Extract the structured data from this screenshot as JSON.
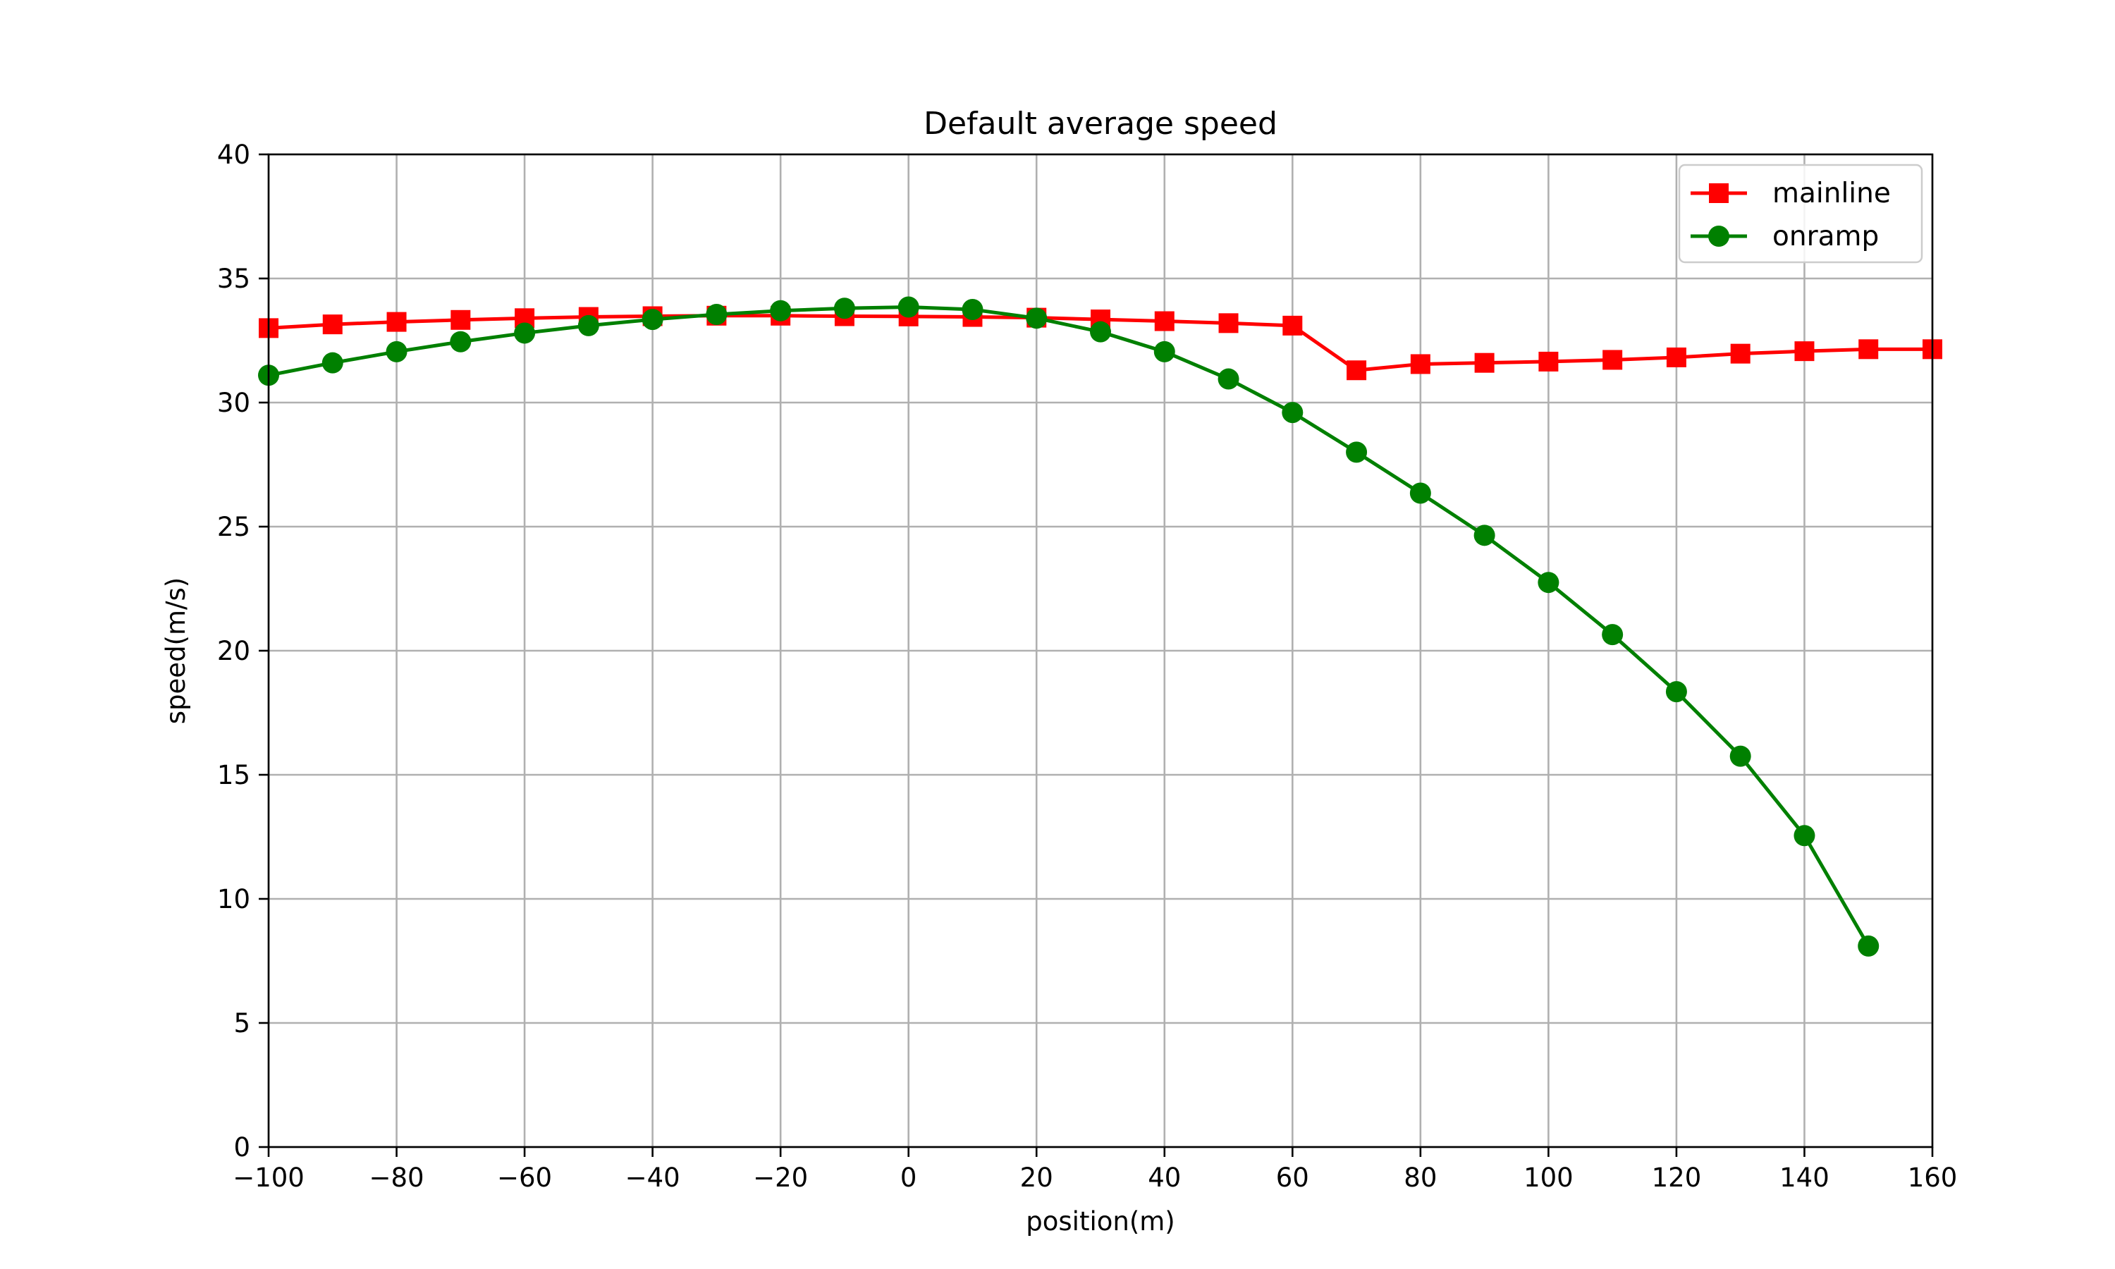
{
  "chart_data": {
    "type": "line",
    "title": "Default average speed",
    "xlabel": "position(m)",
    "ylabel": "speed(m/s)",
    "xlim": [
      -100,
      160
    ],
    "ylim": [
      0,
      40
    ],
    "x_ticks": [
      -100,
      -80,
      -60,
      -40,
      -20,
      0,
      20,
      40,
      60,
      80,
      100,
      120,
      140,
      160
    ],
    "x_tick_labels": [
      "−100",
      "−80",
      "−60",
      "−40",
      "−20",
      "0",
      "20",
      "40",
      "60",
      "80",
      "100",
      "120",
      "140",
      "160"
    ],
    "y_ticks": [
      0,
      5,
      10,
      15,
      20,
      25,
      30,
      35,
      40
    ],
    "y_tick_labels": [
      "0",
      "5",
      "10",
      "15",
      "20",
      "25",
      "30",
      "35",
      "40"
    ],
    "grid": true,
    "legend_position": "top-right",
    "series": [
      {
        "name": "mainline",
        "color": "#ff0000",
        "marker": "square",
        "x": [
          -100,
          -90,
          -80,
          -70,
          -60,
          -50,
          -40,
          -30,
          -20,
          -10,
          0,
          10,
          20,
          30,
          40,
          50,
          60,
          70,
          80,
          90,
          100,
          110,
          120,
          130,
          140,
          150,
          160
        ],
        "y": [
          33.0,
          33.15,
          33.25,
          33.33,
          33.4,
          33.45,
          33.48,
          33.5,
          33.5,
          33.48,
          33.47,
          33.45,
          33.42,
          33.35,
          33.28,
          33.2,
          33.1,
          31.3,
          31.55,
          31.6,
          31.65,
          31.72,
          31.82,
          31.97,
          32.07,
          32.15,
          32.15
        ]
      },
      {
        "name": "onramp",
        "color": "#008000",
        "marker": "circle",
        "x": [
          -100,
          -90,
          -80,
          -70,
          -60,
          -50,
          -40,
          -30,
          -20,
          -10,
          0,
          10,
          20,
          30,
          40,
          50,
          60,
          70,
          80,
          90,
          100,
          110,
          120,
          130,
          140,
          150
        ],
        "y": [
          31.1,
          31.6,
          32.05,
          32.45,
          32.8,
          33.1,
          33.35,
          33.55,
          33.7,
          33.8,
          33.85,
          33.75,
          33.4,
          32.85,
          32.05,
          30.95,
          29.6,
          28.0,
          26.35,
          24.65,
          22.75,
          20.65,
          18.35,
          15.75,
          12.55,
          8.1
        ]
      }
    ]
  }
}
